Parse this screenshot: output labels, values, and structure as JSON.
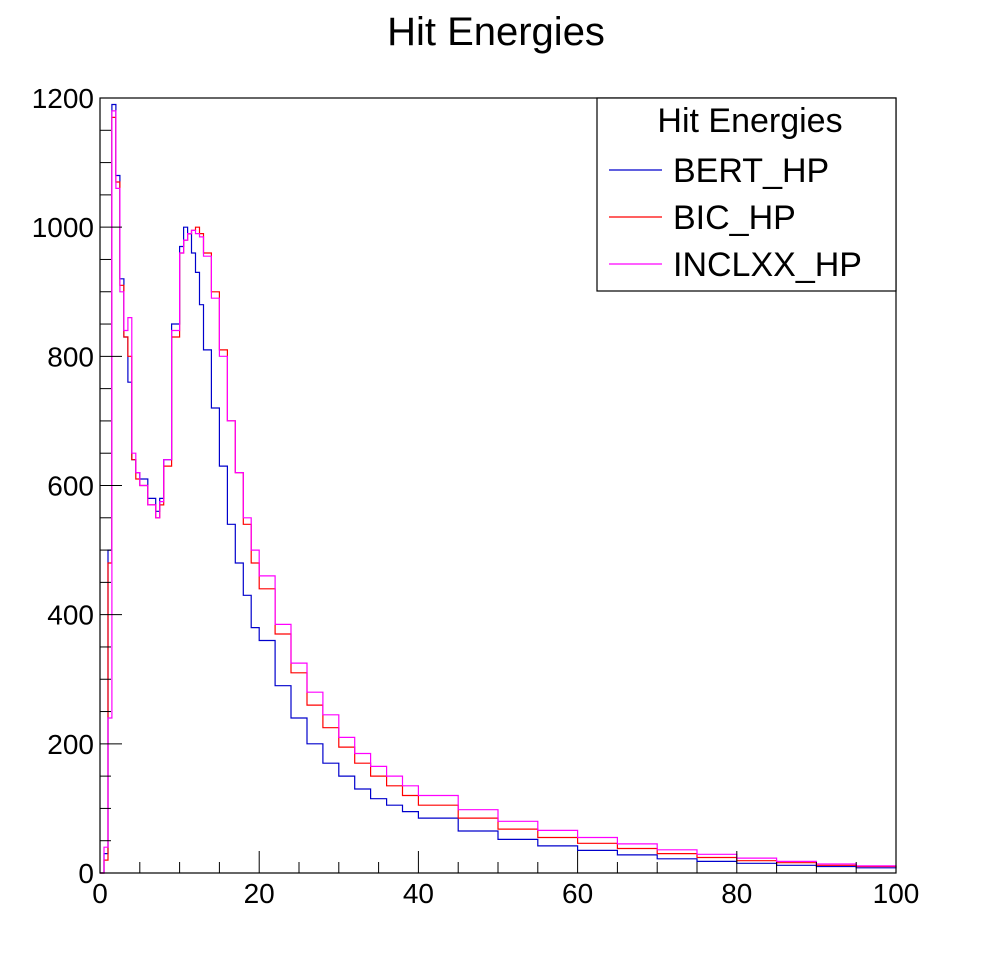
{
  "chart_data": {
    "type": "line",
    "title": "Hit Energies",
    "xlabel": "",
    "ylabel": "",
    "xlim": [
      0,
      100
    ],
    "ylim": [
      0,
      1200
    ],
    "x_ticks": [
      "0",
      "20",
      "40",
      "60",
      "80",
      "100"
    ],
    "y_ticks": [
      "0",
      "200",
      "400",
      "600",
      "800",
      "1000",
      "1200"
    ],
    "grid": false,
    "legend": {
      "title": "Hit Energies",
      "position": "top-right"
    },
    "series": [
      {
        "name": "BERT_HP",
        "color": "#0000cc",
        "x": [
          0,
          0.5,
          1,
          1.5,
          2,
          2.5,
          3,
          3.5,
          4,
          4.5,
          5,
          6,
          7,
          7.5,
          8,
          9,
          10,
          10.5,
          11,
          11.5,
          12,
          12.5,
          13,
          14,
          15,
          16,
          17,
          18,
          19,
          20,
          22,
          24,
          26,
          28,
          30,
          32,
          34,
          36,
          38,
          40,
          45,
          50,
          55,
          60,
          65,
          70,
          75,
          80,
          85,
          90,
          95,
          100
        ],
        "values": [
          0,
          30,
          500,
          1190,
          1080,
          920,
          830,
          760,
          640,
          620,
          610,
          580,
          560,
          580,
          640,
          850,
          970,
          1000,
          990,
          960,
          930,
          880,
          810,
          720,
          630,
          540,
          480,
          430,
          380,
          360,
          290,
          240,
          200,
          170,
          150,
          130,
          115,
          105,
          95,
          85,
          65,
          52,
          42,
          35,
          28,
          22,
          18,
          15,
          12,
          10,
          8,
          7
        ]
      },
      {
        "name": "BIC_HP",
        "color": "#ff0000",
        "x": [
          0,
          0.5,
          1,
          1.5,
          2,
          2.5,
          3,
          3.5,
          4,
          4.5,
          5,
          6,
          7,
          7.5,
          8,
          9,
          10,
          10.5,
          11,
          11.5,
          12,
          12.5,
          13,
          14,
          15,
          16,
          17,
          18,
          19,
          20,
          22,
          24,
          26,
          28,
          30,
          32,
          34,
          36,
          38,
          40,
          45,
          50,
          55,
          60,
          65,
          70,
          75,
          80,
          85,
          90,
          95,
          100
        ],
        "values": [
          0,
          20,
          480,
          1170,
          1070,
          910,
          830,
          800,
          640,
          610,
          600,
          570,
          550,
          570,
          630,
          830,
          960,
          980,
          990,
          995,
          1000,
          990,
          960,
          900,
          810,
          700,
          620,
          540,
          480,
          440,
          370,
          310,
          260,
          225,
          195,
          170,
          150,
          135,
          120,
          105,
          85,
          68,
          55,
          46,
          38,
          30,
          24,
          19,
          16,
          12,
          10,
          8
        ]
      },
      {
        "name": "INCLXX_HP",
        "color": "#ff00ff",
        "x": [
          0,
          0.5,
          1,
          1.5,
          2,
          2.5,
          3,
          3.5,
          4,
          4.5,
          5,
          6,
          7,
          7.5,
          8,
          9,
          10,
          10.5,
          11,
          11.5,
          12,
          12.5,
          13,
          14,
          15,
          16,
          17,
          18,
          19,
          20,
          22,
          24,
          26,
          28,
          30,
          32,
          34,
          36,
          38,
          40,
          45,
          50,
          55,
          60,
          65,
          70,
          75,
          80,
          85,
          90,
          95,
          100
        ],
        "values": [
          0,
          40,
          240,
          1180,
          1060,
          900,
          840,
          860,
          650,
          620,
          600,
          570,
          550,
          575,
          640,
          840,
          960,
          980,
          990,
          995,
          990,
          985,
          955,
          890,
          800,
          700,
          620,
          550,
          500,
          460,
          385,
          325,
          280,
          245,
          210,
          185,
          165,
          150,
          135,
          120,
          98,
          80,
          66,
          55,
          45,
          36,
          29,
          23,
          18,
          14,
          11,
          9
        ]
      }
    ]
  }
}
